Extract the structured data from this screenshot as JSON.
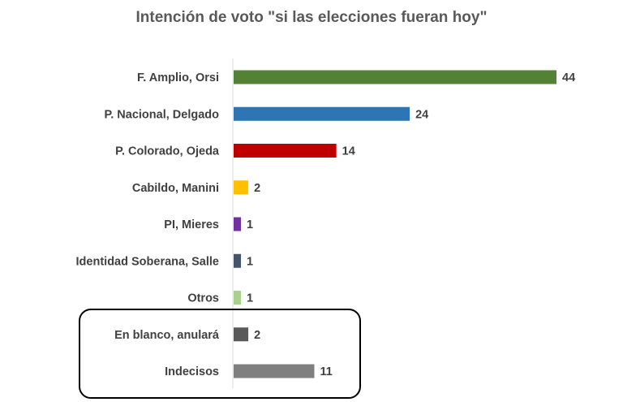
{
  "chart_data": {
    "type": "bar",
    "orientation": "horizontal",
    "title": "Intención de voto \"si las elecciones fueran hoy\"",
    "xlabel": "",
    "ylabel": "",
    "xlim": [
      0,
      44
    ],
    "grid": false,
    "legend": "none",
    "categories": [
      "F. Amplio, Orsi",
      "P. Nacional, Delgado",
      "P. Colorado, Ojeda",
      "Cabildo, Manini",
      "PI, Mieres",
      "Identidad Soberana, Salle",
      "Otros",
      "En blanco, anulará",
      "Indecisos"
    ],
    "values": [
      44,
      24,
      14,
      2,
      1,
      1,
      1,
      2,
      11
    ],
    "value_labels": [
      "44",
      "24",
      "14",
      "2",
      "1",
      "1",
      "1",
      "2",
      "11"
    ],
    "colors": [
      "#548235",
      "#2E75B6",
      "#C00000",
      "#FFC000",
      "#7030A0",
      "#44546A",
      "#A9D18E",
      "#595959",
      "#7F7F7F"
    ],
    "highlighted_group": [
      "En blanco, anulará",
      "Indecisos"
    ],
    "highlight_box_color": "#000000"
  }
}
